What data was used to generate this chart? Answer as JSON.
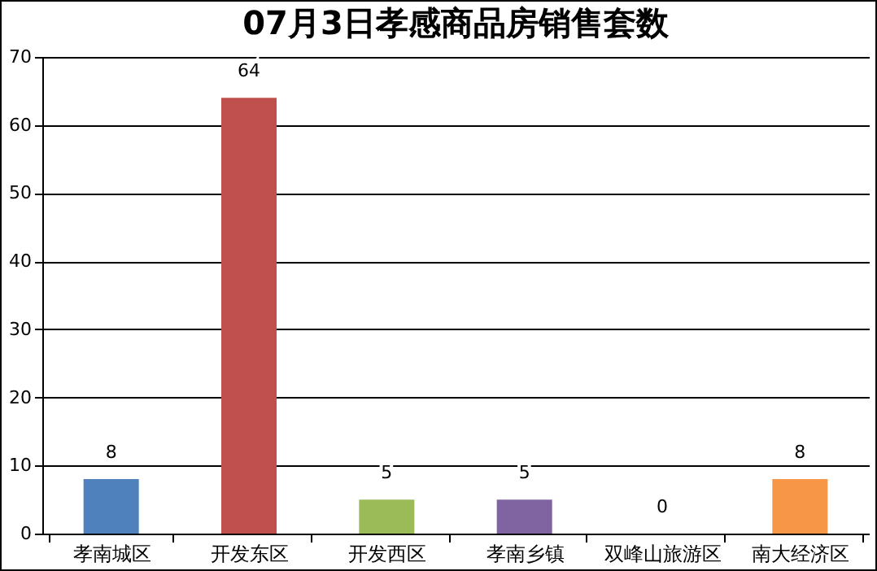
{
  "chart_data": {
    "type": "bar",
    "title": "07月3日孝感商品房销售套数",
    "categories": [
      "孝南城区",
      "开发东区",
      "开发西区",
      "孝南乡镇",
      "双峰山旅游区",
      "南大经济区"
    ],
    "values": [
      8,
      64,
      5,
      5,
      0,
      8
    ],
    "colors": [
      "#4f81bd",
      "#c0504d",
      "#9bbb59",
      "#8064a2",
      "#4bacc6",
      "#f79646"
    ],
    "ylim": [
      0,
      70
    ],
    "yticks": [
      0,
      10,
      20,
      30,
      40,
      50,
      60,
      70
    ],
    "grid": "y",
    "data_labels": true
  }
}
